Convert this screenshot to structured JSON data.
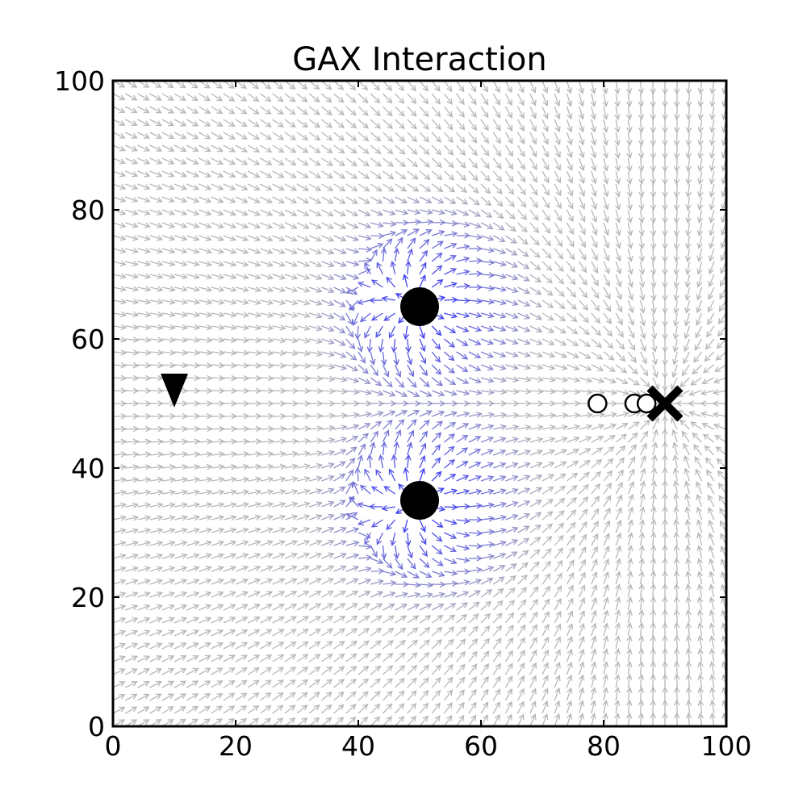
{
  "chart_data": {
    "type": "scatter",
    "subtype": "quiver",
    "title": "GAX Interaction",
    "xlabel": "",
    "ylabel": "",
    "xlim": [
      0,
      100
    ],
    "ylim": [
      0,
      100
    ],
    "grid": false,
    "x_ticks": [
      "0",
      "20",
      "40",
      "60",
      "80",
      "100"
    ],
    "y_ticks": [
      "0",
      "20",
      "40",
      "60",
      "80",
      "100"
    ],
    "vector_field": {
      "spacing": 2,
      "range": [
        0,
        100
      ],
      "description_colors": {
        "far": "#b0b0b0",
        "near": "#2a2af0"
      },
      "repulsors": [
        {
          "x": 50,
          "y": 65
        },
        {
          "x": 50,
          "y": 35
        }
      ],
      "goal": {
        "x": 90,
        "y": 50
      }
    },
    "markers": {
      "start": {
        "x": 10,
        "y": 52,
        "shape": "triangle-down",
        "color": "#000000"
      },
      "obstacles": [
        {
          "x": 50,
          "y": 65,
          "shape": "circle",
          "color": "#000000"
        },
        {
          "x": 50,
          "y": 35,
          "shape": "circle",
          "color": "#000000"
        }
      ],
      "goal": {
        "x": 90,
        "y": 50,
        "shape": "x",
        "color": "#000000"
      },
      "agents": [
        {
          "x": 79,
          "y": 50
        },
        {
          "x": 85,
          "y": 50
        },
        {
          "x": 87,
          "y": 50
        }
      ]
    },
    "path": {
      "from": {
        "x": 10,
        "y": 50
      },
      "to": {
        "x": 88,
        "y": 50
      }
    }
  }
}
